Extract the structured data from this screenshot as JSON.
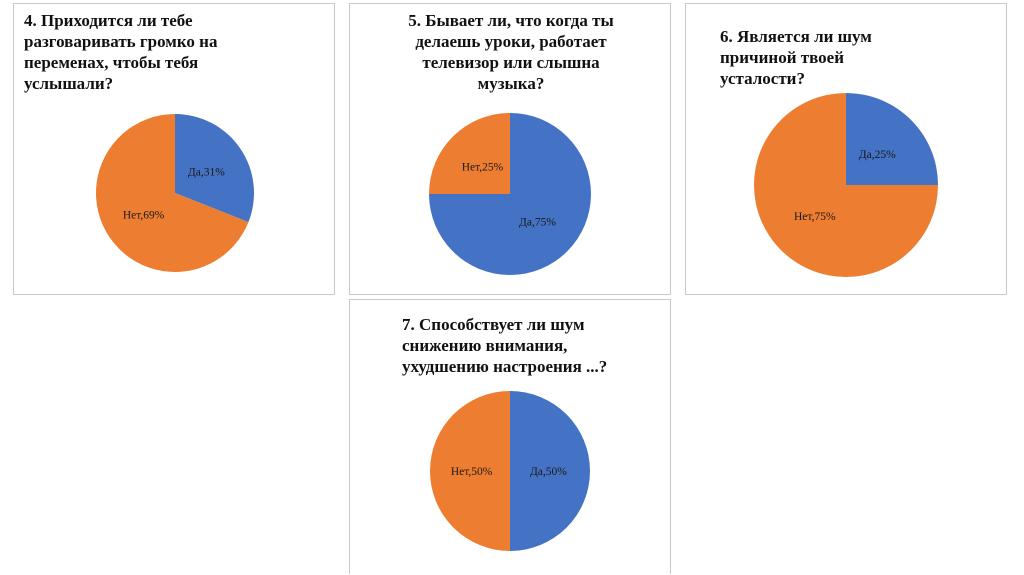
{
  "colors": {
    "yes": "#4472C4",
    "no": "#ED7D31"
  },
  "chart_data": [
    {
      "type": "pie",
      "title": "4. Приходится ли тебе\nразговаривать громко на\nпеременах, чтобы тебя\nуслышали?",
      "slices": [
        {
          "label": "Да,31%",
          "value": 31,
          "color": "#4472C4"
        },
        {
          "label": "Нет,69%",
          "value": 69,
          "color": "#ED7D31"
        }
      ]
    },
    {
      "type": "pie",
      "title": "5. Бывает ли, что когда ты\nделаешь уроки, работает\nтелевизор или слышна\nмузыка?",
      "slices": [
        {
          "label": "Да,75%",
          "value": 75,
          "color": "#4472C4"
        },
        {
          "label": "Нет,25%",
          "value": 25,
          "color": "#ED7D31"
        }
      ]
    },
    {
      "type": "pie",
      "title": "6. Является ли шум\nпричиной твоей\nусталости?",
      "slices": [
        {
          "label": "Да,25%",
          "value": 25,
          "color": "#4472C4"
        },
        {
          "label": "Нет,75%",
          "value": 75,
          "color": "#ED7D31"
        }
      ]
    },
    {
      "type": "pie",
      "title": "7. Способствует ли шум\nснижению внимания,\nухудшению настроения ...?",
      "slices": [
        {
          "label": "Да,50%",
          "value": 50,
          "color": "#4472C4"
        },
        {
          "label": "Нет,50%",
          "value": 50,
          "color": "#ED7D31"
        }
      ]
    }
  ]
}
